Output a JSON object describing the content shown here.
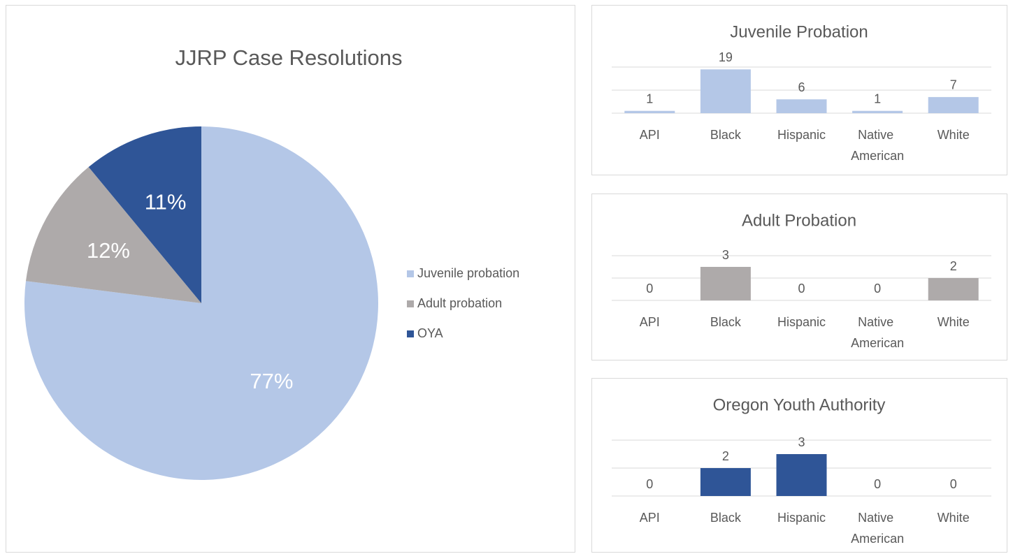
{
  "chart_data": [
    {
      "type": "pie",
      "title": "JJRP Case Resolutions",
      "categories": [
        "Juvenile probation",
        "Adult probation",
        "OYA"
      ],
      "values": [
        77,
        12,
        11
      ],
      "value_labels": [
        "77%",
        "12%",
        "11%"
      ],
      "colors": [
        "#b4c7e7",
        "#aeaaaa",
        "#2f5597"
      ],
      "legend": "right"
    },
    {
      "type": "bar",
      "title": "Juvenile Probation",
      "categories": [
        "API",
        "Black",
        "Hispanic",
        "Native American",
        "White"
      ],
      "values": [
        1,
        19,
        6,
        1,
        7
      ],
      "color": "#b4c7e7",
      "ylim": [
        0,
        20
      ],
      "yticks": [
        0,
        10,
        20
      ],
      "grid": true
    },
    {
      "type": "bar",
      "title": "Adult Probation",
      "categories": [
        "API",
        "Black",
        "Hispanic",
        "Native American",
        "White"
      ],
      "values": [
        0,
        3,
        0,
        0,
        2
      ],
      "color": "#aeaaaa",
      "ylim": [
        0,
        4
      ],
      "yticks": [
        0,
        2,
        4
      ],
      "grid": true
    },
    {
      "type": "bar",
      "title": "Oregon Youth Authority",
      "categories": [
        "API",
        "Black",
        "Hispanic",
        "Native American",
        "White"
      ],
      "values": [
        0,
        2,
        3,
        0,
        0
      ],
      "color": "#2f5597",
      "ylim": [
        0,
        4
      ],
      "yticks": [
        0,
        2,
        4
      ],
      "grid": true
    }
  ]
}
